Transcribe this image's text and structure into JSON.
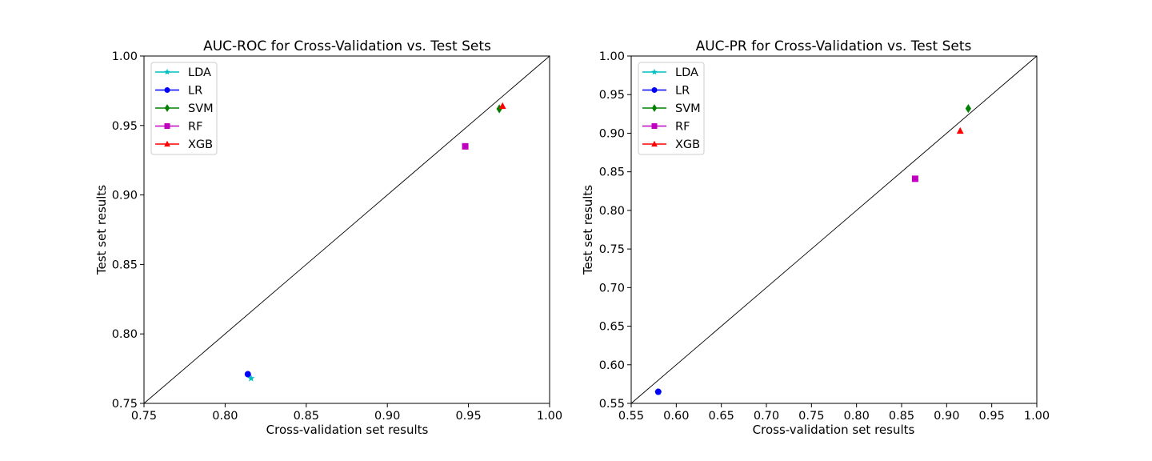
{
  "chart_data": [
    {
      "type": "scatter",
      "title": "AUC-ROC for Cross-Validation vs. Test Sets",
      "xlabel": "Cross-validation set results",
      "ylabel": "Test set results",
      "xlim": [
        0.75,
        1.0
      ],
      "ylim": [
        0.75,
        1.0
      ],
      "xticks": [
        "0.75",
        "0.80",
        "0.85",
        "0.90",
        "0.95",
        "1.00"
      ],
      "yticks": [
        "0.75",
        "0.80",
        "0.85",
        "0.90",
        "0.95",
        "1.00"
      ],
      "grid": false,
      "legend_position": "top-left",
      "diagonal_reference_line": true,
      "series": [
        {
          "name": "LDA",
          "marker": "star",
          "color": "#00bfbf",
          "x": 0.816,
          "y": 0.768
        },
        {
          "name": "LR",
          "marker": "circle",
          "color": "#0000ff",
          "x": 0.814,
          "y": 0.771
        },
        {
          "name": "SVM",
          "marker": "diamond",
          "color": "#008000",
          "x": 0.969,
          "y": 0.962
        },
        {
          "name": "RF",
          "marker": "square",
          "color": "#bf00bf",
          "x": 0.948,
          "y": 0.935
        },
        {
          "name": "XGB",
          "marker": "triangle",
          "color": "#ff0000",
          "x": 0.971,
          "y": 0.964
        }
      ]
    },
    {
      "type": "scatter",
      "title": "AUC-PR for Cross-Validation vs. Test Sets",
      "xlabel": "Cross-validation set results",
      "ylabel": "Test set results",
      "xlim": [
        0.55,
        1.0
      ],
      "ylim": [
        0.55,
        1.0
      ],
      "xticks": [
        "0.55",
        "0.60",
        "0.65",
        "0.70",
        "0.75",
        "0.80",
        "0.85",
        "0.90",
        "0.95",
        "1.00"
      ],
      "yticks": [
        "0.55",
        "0.60",
        "0.65",
        "0.70",
        "0.75",
        "0.80",
        "0.85",
        "0.90",
        "0.95",
        "1.00"
      ],
      "grid": false,
      "legend_position": "top-left",
      "diagonal_reference_line": true,
      "series": [
        {
          "name": "LDA",
          "marker": "star",
          "color": "#00bfbf",
          "x": 0.58,
          "y": 0.565
        },
        {
          "name": "LR",
          "marker": "circle",
          "color": "#0000ff",
          "x": 0.58,
          "y": 0.565
        },
        {
          "name": "SVM",
          "marker": "diamond",
          "color": "#008000",
          "x": 0.924,
          "y": 0.932
        },
        {
          "name": "RF",
          "marker": "square",
          "color": "#bf00bf",
          "x": 0.865,
          "y": 0.841
        },
        {
          "name": "XGB",
          "marker": "triangle",
          "color": "#ff0000",
          "x": 0.915,
          "y": 0.903
        }
      ]
    }
  ]
}
